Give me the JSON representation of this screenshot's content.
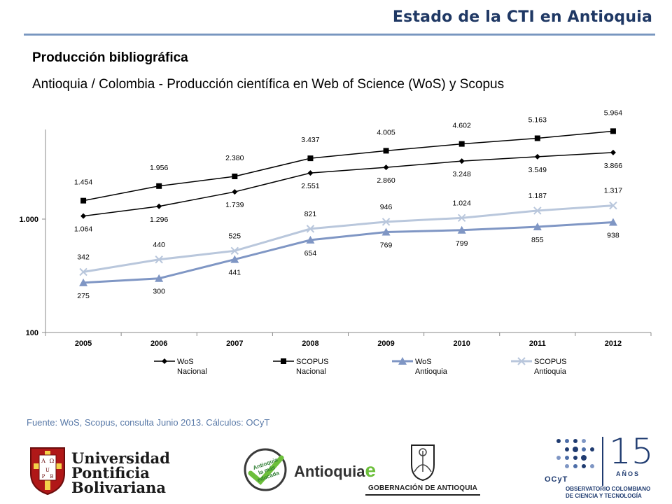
{
  "header": {
    "title": "Estado de la CTI en Antioquia"
  },
  "section_title": "Producción bibliográfica",
  "subtitle": "Antioquia / Colombia - Producción científica en Web of Science (WoS) y Scopus",
  "source_note": "Fuente: WoS, Scopus, consulta Junio 2013. Cálculos: OCyT",
  "colors": {
    "header": "#1f3864",
    "wos_antioquia": "#7f96c4",
    "scopus_antioquia": "#b9c7dc",
    "national": "#000000"
  },
  "chart_data": {
    "type": "line",
    "title": "",
    "xlabel": "",
    "ylabel": "",
    "yscale": "log",
    "ylim": [
      100,
      10000
    ],
    "ytick_labels": [
      "100",
      "1.000"
    ],
    "ytick_values": [
      100,
      1000
    ],
    "grid": false,
    "legend": "bottom",
    "categories": [
      "2005",
      "2006",
      "2007",
      "2008",
      "2009",
      "2010",
      "2011",
      "2012"
    ],
    "series": [
      {
        "legend": [
          "WoS",
          "Nacional"
        ],
        "marker": "diamond",
        "color": "#000000",
        "values": [
          1064,
          1296,
          1739,
          2551,
          2860,
          3248,
          3549,
          3866
        ],
        "labels": [
          "1.064",
          "1.296",
          "1.739",
          "2.551",
          "2.860",
          "3.248",
          "3.549",
          "3.866"
        ]
      },
      {
        "legend": [
          "SCOPUS",
          "Nacional"
        ],
        "marker": "square",
        "color": "#000000",
        "values": [
          1454,
          1956,
          2380,
          3437,
          4005,
          4602,
          5163,
          5964
        ],
        "labels": [
          "1.454",
          "1.956",
          "2.380",
          "3.437",
          "4.005",
          "4.602",
          "5.163",
          "5.964"
        ]
      },
      {
        "legend": [
          "WoS",
          "Antioquia"
        ],
        "marker": "triangle",
        "color": "#7f96c4",
        "values": [
          275,
          300,
          441,
          654,
          769,
          799,
          855,
          938
        ],
        "labels": [
          "275",
          "300",
          "441",
          "654",
          "769",
          "799",
          "855",
          "938"
        ]
      },
      {
        "legend": [
          "SCOPUS",
          "Antioquia"
        ],
        "marker": "x",
        "color": "#b9c7dc",
        "values": [
          342,
          440,
          525,
          821,
          946,
          1024,
          1187,
          1317
        ],
        "labels": [
          "342",
          "440",
          "525",
          "821",
          "946",
          "1.024",
          "1.187",
          "1.317"
        ]
      }
    ]
  },
  "logos": {
    "upb": {
      "name": [
        "Universidad",
        "Pontificia",
        "Bolivariana"
      ],
      "emblem_icon": "upb-shield-icon",
      "emblem_letters": [
        "A",
        "Ω",
        "U",
        "P",
        "B"
      ]
    },
    "antioquia": {
      "name": "Antioquia",
      "suffix": "e",
      "badge_icon": "antioquia-badge-icon",
      "badge_text": [
        "Antioquia",
        "la más",
        "educada"
      ]
    },
    "gobernacion": {
      "name": "GOBERNACIÓN DE ANTIOQUIA",
      "crest_icon": "antioquia-crest-icon"
    },
    "ocyt": {
      "mark_icon": "ocyt-dots-icon",
      "acronym": "OCyT",
      "years": "15",
      "years_label": "AÑOS",
      "lines": [
        "OBSERVATORIO COLOMBIANO",
        "DE CIENCIA Y TECNOLOGÍA"
      ]
    }
  }
}
